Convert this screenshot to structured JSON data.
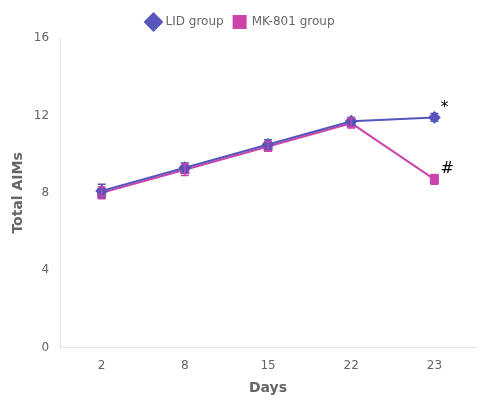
{
  "chart_data": {
    "type": "line",
    "xlabel": "Days",
    "ylabel": "Total AIMs",
    "categories": [
      "2",
      "8",
      "15",
      "22",
      "23"
    ],
    "series": [
      {
        "name": "LID group",
        "color": "#5555bb",
        "marker": "diamond",
        "values": [
          8.1,
          9.3,
          10.5,
          11.7,
          11.9
        ],
        "errors": [
          0.35,
          0.25,
          0.25,
          0.2,
          0.2
        ]
      },
      {
        "name": "MK-801 group",
        "color": "#cc44aa",
        "marker": "square",
        "values": [
          8.0,
          9.2,
          10.4,
          11.6,
          8.7
        ],
        "errors": [
          0.3,
          0.3,
          0.25,
          0.25,
          0.25
        ]
      }
    ],
    "ylim": [
      0,
      16
    ],
    "yticks": [
      0,
      4,
      8,
      12,
      16
    ],
    "annotations": [
      {
        "text": "*",
        "category": "23",
        "series": "LID group"
      },
      {
        "text": "#",
        "category": "23",
        "series": "MK-801 group"
      }
    ],
    "legend": "top",
    "grid": false
  }
}
